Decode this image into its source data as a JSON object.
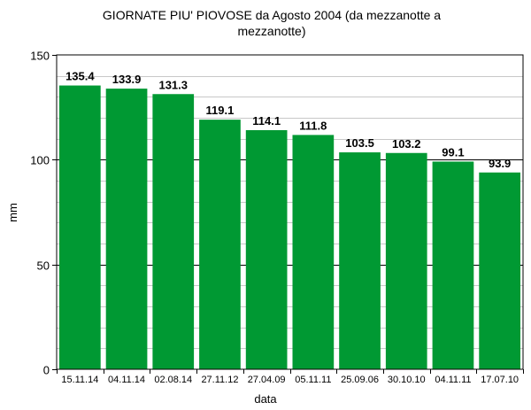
{
  "chart_data": {
    "type": "bar",
    "title_lines": [
      "GIORNATE PIU' PIOVOSE da Agosto 2004 (da mezzanotte a",
      "mezzanotte)"
    ],
    "xlabel": "data",
    "ylabel": "mm",
    "categories": [
      "15.11.14",
      "04.11.14",
      "02.08.14",
      "27.11.12",
      "27.04.09",
      "05.11.11",
      "25.09.06",
      "30.10.10",
      "04.11.11",
      "17.07.10"
    ],
    "values": [
      135.4,
      133.9,
      131.3,
      119.1,
      114.1,
      111.8,
      103.5,
      103.2,
      99.1,
      93.9
    ],
    "data_labels": [
      "135.4",
      "133.9",
      "131.3",
      "119.1",
      "114.1",
      "111.8",
      "103.5",
      "103.2",
      "99.1",
      "93.9"
    ],
    "ylim": [
      0,
      150
    ],
    "yticks": [
      0,
      50,
      100,
      150
    ],
    "ytick_labels": [
      "0",
      "50",
      "100",
      "150"
    ],
    "y_minor_step": 10,
    "grid": true,
    "legend": "none",
    "bar_color": "#009933"
  }
}
